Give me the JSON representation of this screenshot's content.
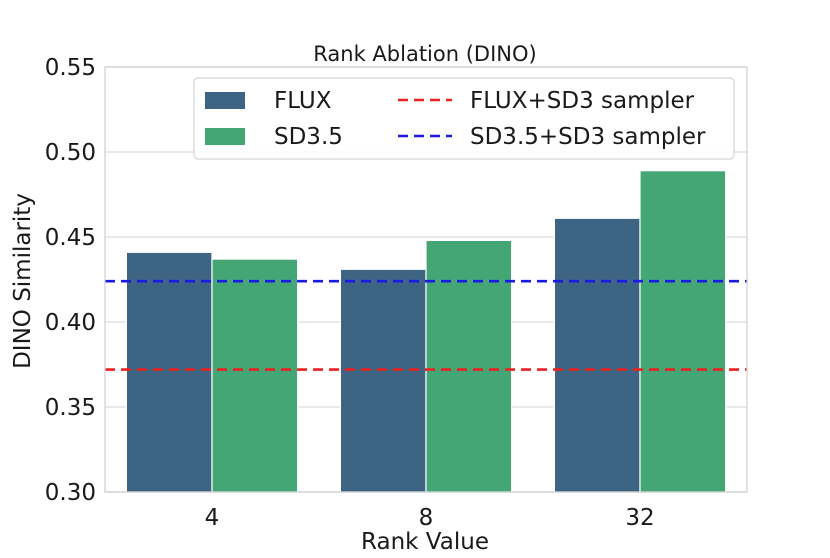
{
  "chart_data": {
    "type": "bar",
    "title": "Rank Ablation (DINO)",
    "xlabel": "Rank Value",
    "ylabel": "DINO Similarity",
    "categories": [
      "4",
      "8",
      "32"
    ],
    "series": [
      {
        "name": "FLUX",
        "values": [
          0.441,
          0.431,
          0.461
        ],
        "color": "#3d6483"
      },
      {
        "name": "SD3.5",
        "values": [
          0.437,
          0.448,
          0.489
        ],
        "color": "#45a675"
      }
    ],
    "reference_lines": [
      {
        "name": "FLUX+SD3 sampler",
        "value": 0.372,
        "color": "#ee2020",
        "style": "dashed"
      },
      {
        "name": "SD3.5+SD3 sampler",
        "value": 0.424,
        "color": "#1a1ae6",
        "style": "dashed"
      }
    ],
    "ylim": [
      0.3,
      0.55
    ],
    "yticks": [
      "0.30",
      "0.35",
      "0.40",
      "0.45",
      "0.50",
      "0.55"
    ],
    "grid": true,
    "legend_position": "top-right"
  }
}
